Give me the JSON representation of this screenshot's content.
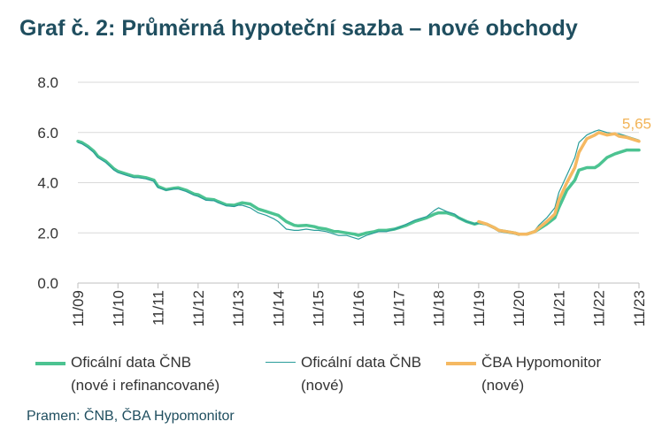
{
  "title": "Graf č. 2: Průměrná hypoteční sazba – nové obchody",
  "source": "Pramen: ČNB, ČBA Hypomonitor",
  "colors": {
    "official_all": "#4cc391",
    "official_new": "#2a9d9a",
    "hypomonitor": "#f5b962",
    "title": "#1f4e5f"
  },
  "chart_data": {
    "type": "line",
    "ylim": [
      0,
      8
    ],
    "yticks": [
      "0.0",
      "2.0",
      "4.0",
      "6.0",
      "8.0"
    ],
    "ytick_values": [
      0,
      2,
      4,
      6,
      8
    ],
    "xlim": [
      0,
      14
    ],
    "xticks": [
      "11/09",
      "11/10",
      "11/11",
      "11/12",
      "11/13",
      "11/14",
      "11/15",
      "11/16",
      "11/17",
      "11/18",
      "11/19",
      "11/20",
      "11/21",
      "11/22",
      "11/23"
    ],
    "grid": "horizontal",
    "legend_position": "bottom",
    "end_label": "5,65",
    "series": [
      {
        "name": "Oficální data ČNB (nové i refinancované)",
        "legend_line1": "Oficální data ČNB",
        "legend_line2": "(nové i refinancované)",
        "x": [
          0,
          0.1,
          0.25,
          0.4,
          0.5,
          0.7,
          0.9,
          1.0,
          1.2,
          1.4,
          1.5,
          1.7,
          1.9,
          2.0,
          2.2,
          2.4,
          2.5,
          2.7,
          2.9,
          3.0,
          3.2,
          3.4,
          3.5,
          3.7,
          3.9,
          4.0,
          4.1,
          4.3,
          4.5,
          4.7,
          4.9,
          5.0,
          5.2,
          5.4,
          5.5,
          5.7,
          5.9,
          6.0,
          6.2,
          6.4,
          6.5,
          6.7,
          6.9,
          7.0,
          7.2,
          7.4,
          7.5,
          7.7,
          7.9,
          8.0,
          8.2,
          8.4,
          8.5,
          8.7,
          8.9,
          9.0,
          9.2,
          9.4,
          9.5,
          9.7,
          9.9,
          10.0,
          10.2,
          10.4,
          10.5,
          10.7,
          10.9,
          11.0,
          11.2,
          11.4,
          11.5,
          11.7,
          11.9,
          12.0,
          12.2,
          12.4,
          12.5,
          12.7,
          12.9,
          13.0,
          13.2,
          13.4,
          13.5,
          13.7,
          13.9,
          14.0
        ],
        "y": [
          5.65,
          5.6,
          5.45,
          5.25,
          5.05,
          4.85,
          4.55,
          4.45,
          4.35,
          4.25,
          4.25,
          4.2,
          4.1,
          3.85,
          3.72,
          3.78,
          3.8,
          3.7,
          3.55,
          3.52,
          3.35,
          3.32,
          3.25,
          3.12,
          3.1,
          3.15,
          3.2,
          3.15,
          2.95,
          2.85,
          2.75,
          2.7,
          2.45,
          2.3,
          2.28,
          2.3,
          2.25,
          2.2,
          2.15,
          2.05,
          2.05,
          2.0,
          1.95,
          1.9,
          2.0,
          2.05,
          2.1,
          2.1,
          2.15,
          2.2,
          2.3,
          2.45,
          2.5,
          2.6,
          2.75,
          2.8,
          2.8,
          2.7,
          2.6,
          2.45,
          2.35,
          2.4,
          2.35,
          2.2,
          2.1,
          2.05,
          2.0,
          1.95,
          1.95,
          2.05,
          2.15,
          2.35,
          2.6,
          3.0,
          3.7,
          4.1,
          4.5,
          4.6,
          4.6,
          4.7,
          5.0,
          5.15,
          5.2,
          5.3,
          5.3,
          5.3
        ]
      },
      {
        "name": "Oficální data ČNB (nové)",
        "legend_line1": "Oficální data ČNB",
        "legend_line2": "(nové)",
        "x": [
          0,
          0.1,
          0.25,
          0.4,
          0.5,
          0.7,
          0.9,
          1.0,
          1.2,
          1.4,
          1.5,
          1.7,
          1.9,
          2.0,
          2.2,
          2.4,
          2.5,
          2.7,
          2.9,
          3.0,
          3.2,
          3.4,
          3.5,
          3.7,
          3.9,
          4.0,
          4.1,
          4.3,
          4.5,
          4.7,
          4.9,
          5.0,
          5.2,
          5.4,
          5.5,
          5.7,
          5.9,
          6.0,
          6.2,
          6.4,
          6.5,
          6.7,
          6.9,
          7.0,
          7.2,
          7.4,
          7.5,
          7.7,
          7.9,
          8.0,
          8.2,
          8.4,
          8.5,
          8.7,
          8.9,
          9.0,
          9.2,
          9.4,
          9.5,
          9.7,
          9.9,
          10.0,
          10.2,
          10.4,
          10.5,
          10.7,
          10.9,
          11.0,
          11.2,
          11.4,
          11.5,
          11.7,
          11.9,
          12.0,
          12.2,
          12.4,
          12.5,
          12.7,
          12.9,
          13.0,
          13.2,
          13.4,
          13.5,
          13.7,
          13.9,
          14.0
        ],
        "y": [
          5.6,
          5.55,
          5.4,
          5.2,
          5.0,
          4.8,
          4.5,
          4.4,
          4.3,
          4.2,
          4.2,
          4.15,
          4.05,
          3.8,
          3.7,
          3.75,
          3.75,
          3.65,
          3.5,
          3.45,
          3.3,
          3.28,
          3.2,
          3.08,
          3.05,
          3.1,
          3.1,
          3.0,
          2.8,
          2.7,
          2.55,
          2.45,
          2.15,
          2.1,
          2.1,
          2.15,
          2.1,
          2.1,
          2.05,
          1.95,
          1.9,
          1.9,
          1.8,
          1.75,
          1.9,
          2.0,
          2.05,
          2.05,
          2.15,
          2.2,
          2.35,
          2.5,
          2.55,
          2.65,
          2.9,
          3.0,
          2.85,
          2.75,
          2.6,
          2.45,
          2.35,
          2.4,
          2.3,
          2.15,
          2.05,
          2.0,
          1.95,
          1.9,
          1.95,
          2.1,
          2.3,
          2.6,
          3.0,
          3.6,
          4.3,
          5.0,
          5.6,
          5.9,
          6.05,
          6.1,
          6.0,
          5.95,
          5.95,
          5.85,
          5.75,
          5.7
        ]
      },
      {
        "name": "ČBA Hypomonitor (nové)",
        "legend_line1": "ČBA Hypomonitor",
        "legend_line2": "(nové)",
        "x": [
          10.0,
          10.2,
          10.4,
          10.5,
          10.7,
          10.9,
          11.0,
          11.2,
          11.4,
          11.5,
          11.7,
          11.9,
          12.0,
          12.2,
          12.4,
          12.5,
          12.7,
          12.9,
          13.0,
          13.2,
          13.4,
          13.5,
          13.7,
          13.9,
          14.0
        ],
        "y": [
          2.45,
          2.35,
          2.2,
          2.1,
          2.05,
          2.0,
          1.95,
          1.95,
          2.05,
          2.2,
          2.45,
          2.75,
          3.3,
          4.0,
          4.6,
          5.2,
          5.75,
          5.9,
          6.0,
          5.9,
          5.95,
          5.85,
          5.8,
          5.7,
          5.65
        ]
      }
    ]
  }
}
